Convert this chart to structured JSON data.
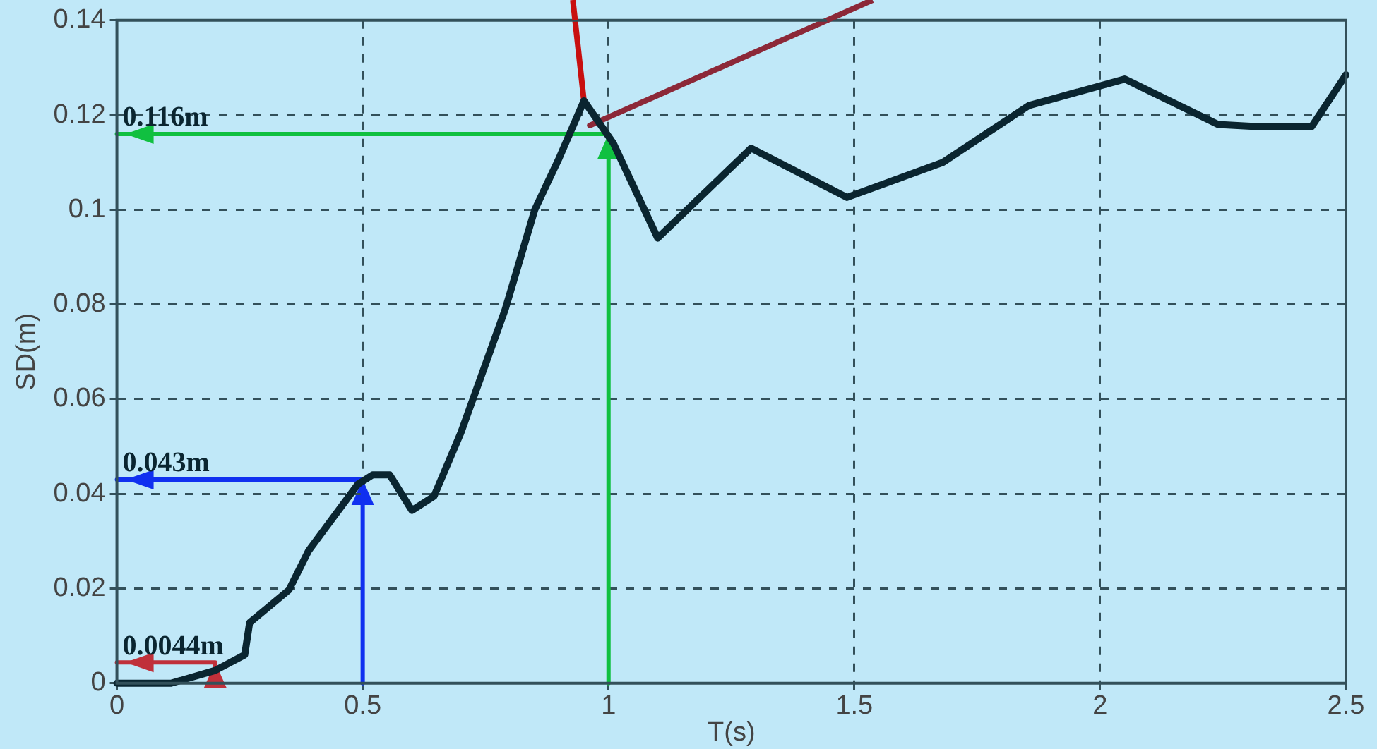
{
  "chart_data": {
    "type": "line",
    "xlabel": "T(s)",
    "ylabel": "SD(m)",
    "x": [
      0,
      0.11,
      0.2,
      0.26,
      0.27,
      0.35,
      0.39,
      0.49,
      0.52,
      0.555,
      0.6,
      0.645,
      0.7,
      0.79,
      0.85,
      0.9,
      0.95,
      1.01,
      1.1,
      1.29,
      1.485,
      1.68,
      1.855,
      2.05,
      2.24,
      2.33,
      2.43,
      2.5
    ],
    "series": [
      {
        "color": "#0a2530",
        "values": [
          0,
          0,
          0.0027,
          0.006,
          0.0128,
          0.0197,
          0.028,
          0.042,
          0.044,
          0.044,
          0.0365,
          0.0395,
          0.053,
          0.079,
          0.1,
          0.111,
          0.123,
          0.114,
          0.094,
          0.113,
          0.1026,
          0.11,
          0.122,
          0.1276,
          0.118,
          0.1175,
          0.1175,
          0.1285
        ]
      },
      {
        "color": "#c0303a",
        "x": [
          0.2,
          0.2,
          0
        ],
        "values": [
          0,
          0.0044,
          0.0044
        ]
      },
      {
        "color": "#1030f0",
        "x": [
          0.5,
          0.5,
          0
        ],
        "values": [
          0,
          0.043,
          0.043
        ]
      },
      {
        "color": "#10c040",
        "x": [
          1,
          1,
          0
        ],
        "values": [
          0,
          0.116,
          0.116
        ]
      },
      {
        "color": "#c81010",
        "x": [
          0.95,
          0.932
        ],
        "values": [
          0.123,
          0.14
        ]
      },
      {
        "color": "#8c2838",
        "x": [
          0.962,
          1.444
        ],
        "values": [
          0.1178,
          0.14
        ]
      }
    ],
    "xlim": [
      0,
      2.5
    ],
    "xticks": [
      0,
      0.5,
      1,
      1.5,
      2,
      2.5
    ],
    "ylim": [
      0,
      0.14
    ],
    "yticks": [
      0,
      0.02,
      0.04,
      0.06,
      0.08,
      0.1,
      0.12,
      0.14
    ],
    "grid": true,
    "legend": false,
    "marker": "none",
    "line_style": "solid",
    "annotations": [
      "0.0044m",
      "0.043m",
      "0.116m"
    ]
  }
}
